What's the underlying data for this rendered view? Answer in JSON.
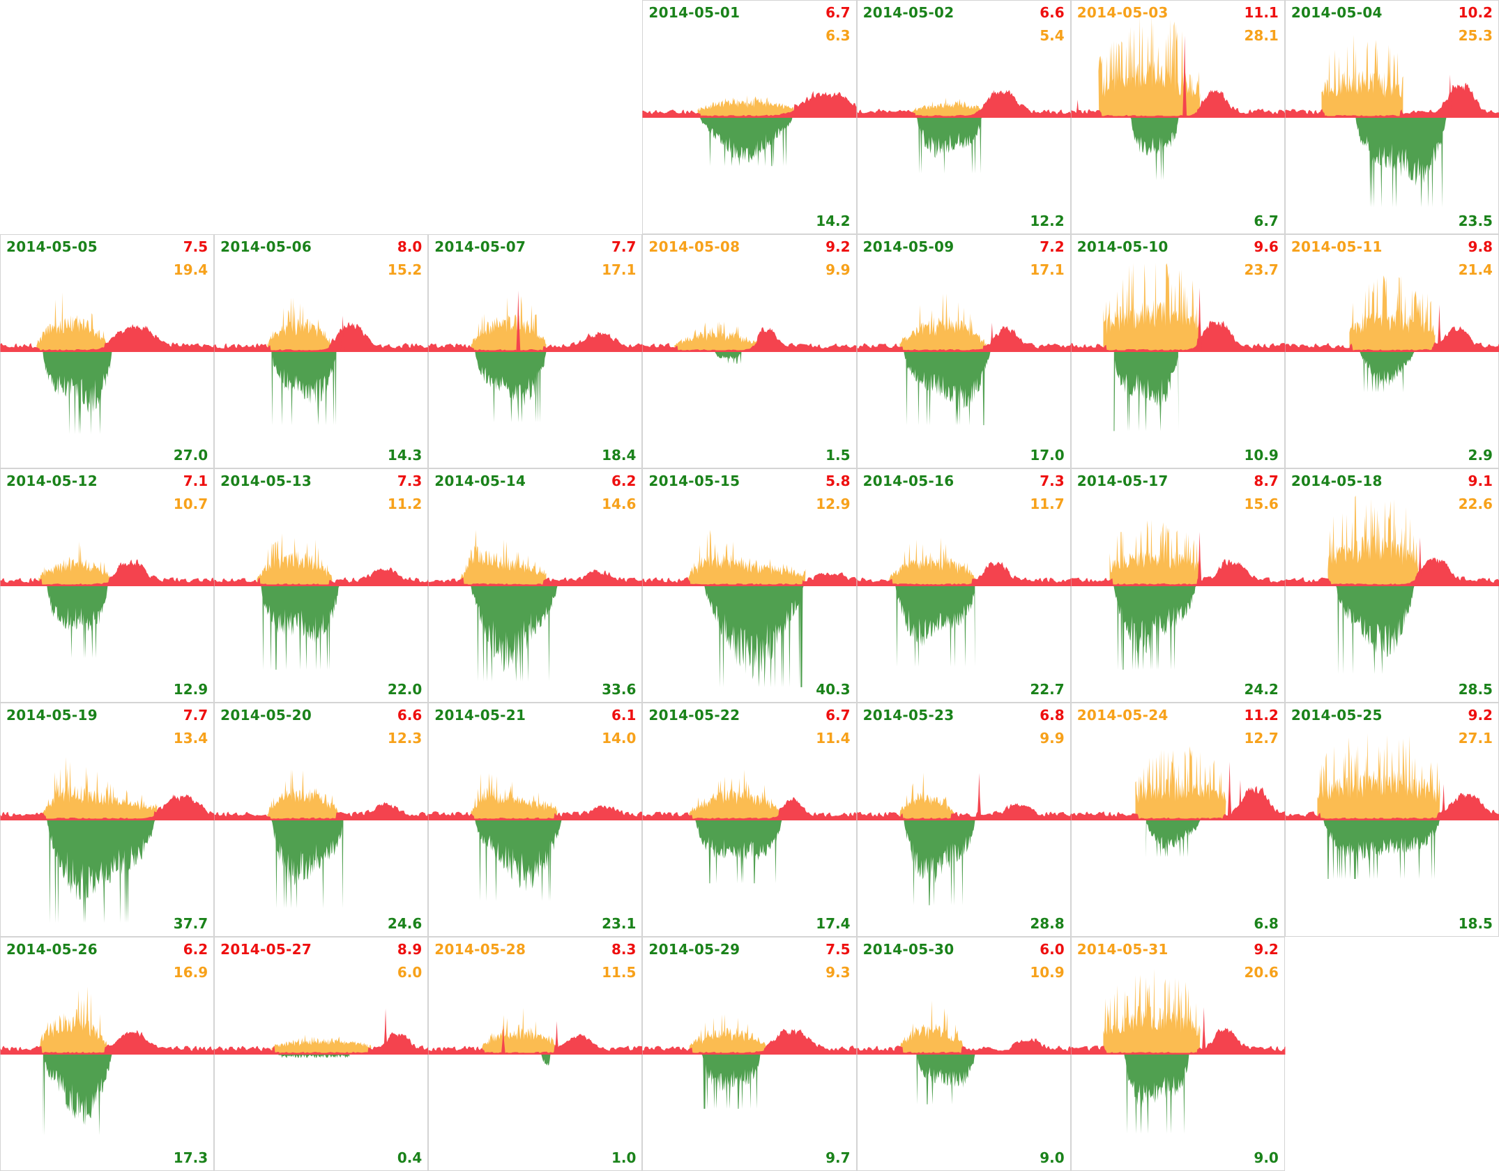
{
  "colors": {
    "text_green": "#1a821a",
    "text_red": "#ee0f0f",
    "text_orange": "#f7a11a",
    "fill_red": "#f4434e",
    "fill_orange": "#fbbc51",
    "fill_green": "#50a050",
    "border": "#d4d4d4",
    "background": "#ffffff"
  },
  "layout_note": "calendar small-multiples, Monday-start week, May 2014 (2014-05-01 falls on column 4 of 7)",
  "chart_data": {
    "type": "area",
    "subtype": "calendar-small-multiples",
    "title": "",
    "xlabel": "",
    "ylabel": "",
    "legend": "none",
    "description": "One intraday area chart per day. Above-baseline band is red outside the activity window and orange inside it (orange spikes up). Below-baseline spikes are green. Top-right red number and orange number, bottom-right green number are the day's summary values.",
    "days": [
      {
        "date": "2014-05-01",
        "label_color": "green",
        "red": "6.7",
        "orange": "6.3",
        "green": "14.2",
        "shape": {
          "aw": [
            0.26,
            0.72
          ],
          "op": 26,
          "os": "mid",
          "gw": [
            0.27,
            0.7
          ],
          "gd": 66,
          "rb": [
            0.86,
            0.13,
            26
          ],
          "rs": []
        }
      },
      {
        "date": "2014-05-02",
        "label_color": "green",
        "red": "6.6",
        "orange": "5.4",
        "green": "12.2",
        "shape": {
          "aw": [
            0.26,
            0.6
          ],
          "op": 18,
          "os": "mid",
          "gw": [
            0.28,
            0.58
          ],
          "gd": 76,
          "rb": [
            0.67,
            0.08,
            30
          ],
          "rs": []
        }
      },
      {
        "date": "2014-05-03",
        "label_color": "orange",
        "red": "11.1",
        "orange": "28.1",
        "green": "6.7",
        "shape": {
          "aw": [
            0.13,
            0.6
          ],
          "op": 118,
          "os": "dense",
          "gw": [
            0.28,
            0.5
          ],
          "gd": 85,
          "rb": [
            0.67,
            0.06,
            32
          ],
          "rs": [
            [
              0.53,
              118
            ],
            [
              0.03,
              26
            ]
          ]
        }
      },
      {
        "date": "2014-05-04",
        "label_color": "green",
        "red": "10.2",
        "orange": "25.3",
        "green": "23.5",
        "shape": {
          "aw": [
            0.17,
            0.55
          ],
          "op": 100,
          "os": "dense",
          "gw": [
            0.33,
            0.75
          ],
          "gd": 122,
          "rb": [
            0.82,
            0.07,
            40
          ],
          "rs": [
            [
              0.77,
              62
            ]
          ]
        }
      },
      {
        "date": "2014-05-05",
        "label_color": "green",
        "red": "7.5",
        "orange": "19.4",
        "green": "27.0",
        "shape": {
          "aw": [
            0.17,
            0.5
          ],
          "op": 70,
          "os": "mid",
          "gw": [
            0.2,
            0.52
          ],
          "gd": 112,
          "rb": [
            0.63,
            0.1,
            28
          ],
          "rs": []
        }
      },
      {
        "date": "2014-05-06",
        "label_color": "green",
        "red": "8.0",
        "orange": "15.2",
        "green": "14.3",
        "shape": {
          "aw": [
            0.25,
            0.55
          ],
          "op": 64,
          "os": "mid",
          "gw": [
            0.27,
            0.57
          ],
          "gd": 100,
          "rb": [
            0.64,
            0.07,
            32
          ],
          "rs": [
            [
              0.6,
              52
            ]
          ]
        }
      },
      {
        "date": "2014-05-07",
        "label_color": "green",
        "red": "7.7",
        "orange": "17.1",
        "green": "18.4",
        "shape": {
          "aw": [
            0.2,
            0.55
          ],
          "op": 74,
          "os": "mid",
          "gw": [
            0.22,
            0.55
          ],
          "gd": 96,
          "rb": [
            0.8,
            0.08,
            18
          ],
          "rs": [
            [
              0.42,
              88
            ]
          ]
        }
      },
      {
        "date": "2014-05-08",
        "label_color": "orange",
        "red": "9.2",
        "orange": "9.9",
        "green": "1.5",
        "shape": {
          "aw": [
            0.15,
            0.55
          ],
          "op": 32,
          "os": "low",
          "gw": [
            0.34,
            0.46
          ],
          "gd": 16,
          "rb": [
            0.58,
            0.05,
            24
          ],
          "rs": []
        }
      },
      {
        "date": "2014-05-09",
        "label_color": "green",
        "red": "7.2",
        "orange": "17.1",
        "green": "17.0",
        "shape": {
          "aw": [
            0.2,
            0.6
          ],
          "op": 68,
          "os": "mid",
          "gw": [
            0.22,
            0.62
          ],
          "gd": 100,
          "rb": [
            0.7,
            0.06,
            26
          ],
          "rs": [
            [
              0.63,
              42
            ]
          ]
        }
      },
      {
        "date": "2014-05-10",
        "label_color": "green",
        "red": "9.6",
        "orange": "23.7",
        "green": "10.9",
        "shape": {
          "aw": [
            0.15,
            0.6
          ],
          "op": 108,
          "os": "dense",
          "gw": [
            0.2,
            0.5
          ],
          "gd": 108,
          "rb": [
            0.68,
            0.07,
            34
          ],
          "rs": [
            [
              0.6,
              92
            ]
          ]
        }
      },
      {
        "date": "2014-05-11",
        "label_color": "orange",
        "red": "9.8",
        "orange": "21.4",
        "green": "2.9",
        "shape": {
          "aw": [
            0.3,
            0.7
          ],
          "op": 88,
          "os": "dense",
          "gw": [
            0.35,
            0.6
          ],
          "gd": 55,
          "rb": [
            0.8,
            0.06,
            26
          ],
          "rs": [
            [
              0.72,
              68
            ]
          ]
        }
      },
      {
        "date": "2014-05-12",
        "label_color": "green",
        "red": "7.1",
        "orange": "10.7",
        "green": "12.9",
        "shape": {
          "aw": [
            0.18,
            0.52
          ],
          "op": 52,
          "os": "mid",
          "gw": [
            0.22,
            0.5
          ],
          "gd": 98,
          "rb": [
            0.61,
            0.07,
            28
          ],
          "rs": []
        }
      },
      {
        "date": "2014-05-13",
        "label_color": "green",
        "red": "7.3",
        "orange": "11.2",
        "green": "22.0",
        "shape": {
          "aw": [
            0.2,
            0.55
          ],
          "op": 68,
          "os": "mid",
          "gw": [
            0.22,
            0.58
          ],
          "gd": 114,
          "rb": [
            0.8,
            0.07,
            16
          ],
          "rs": []
        }
      },
      {
        "date": "2014-05-14",
        "label_color": "green",
        "red": "6.2",
        "orange": "14.6",
        "green": "33.6",
        "shape": {
          "aw": [
            0.15,
            0.55
          ],
          "op": 84,
          "os": "ramp",
          "gw": [
            0.2,
            0.6
          ],
          "gd": 130,
          "rb": [
            0.8,
            0.06,
            12
          ],
          "rs": []
        }
      },
      {
        "date": "2014-05-15",
        "label_color": "green",
        "red": "5.8",
        "orange": "12.9",
        "green": "40.3",
        "shape": {
          "aw": [
            0.21,
            0.76
          ],
          "op": 70,
          "os": "ramp",
          "gw": [
            0.29,
            0.75
          ],
          "gd": 138,
          "rb": [
            0.88,
            0.07,
            12
          ],
          "rs": []
        }
      },
      {
        "date": "2014-05-16",
        "label_color": "green",
        "red": "7.3",
        "orange": "11.7",
        "green": "22.7",
        "shape": {
          "aw": [
            0.15,
            0.55
          ],
          "op": 60,
          "os": "mid",
          "gw": [
            0.18,
            0.55
          ],
          "gd": 110,
          "rb": [
            0.65,
            0.06,
            26
          ],
          "rs": []
        }
      },
      {
        "date": "2014-05-17",
        "label_color": "green",
        "red": "8.7",
        "orange": "15.6",
        "green": "24.2",
        "shape": {
          "aw": [
            0.18,
            0.6
          ],
          "op": 74,
          "os": "dense",
          "gw": [
            0.2,
            0.58
          ],
          "gd": 114,
          "rb": [
            0.75,
            0.07,
            28
          ],
          "rs": [
            [
              0.6,
              78
            ]
          ]
        }
      },
      {
        "date": "2014-05-18",
        "label_color": "green",
        "red": "9.1",
        "orange": "22.6",
        "green": "28.5",
        "shape": {
          "aw": [
            0.2,
            0.62
          ],
          "op": 108,
          "os": "dense",
          "gw": [
            0.24,
            0.6
          ],
          "gd": 120,
          "rb": [
            0.7,
            0.07,
            33
          ],
          "rs": [
            [
              0.63,
              70
            ]
          ]
        }
      },
      {
        "date": "2014-05-19",
        "label_color": "green",
        "red": "7.7",
        "orange": "13.4",
        "green": "37.7",
        "shape": {
          "aw": [
            0.2,
            0.73
          ],
          "op": 80,
          "os": "ramp",
          "gw": [
            0.22,
            0.72
          ],
          "gd": 140,
          "rb": [
            0.85,
            0.09,
            26
          ],
          "rs": []
        }
      },
      {
        "date": "2014-05-20",
        "label_color": "green",
        "red": "6.6",
        "orange": "12.3",
        "green": "24.6",
        "shape": {
          "aw": [
            0.25,
            0.58
          ],
          "op": 64,
          "os": "mid",
          "gw": [
            0.27,
            0.6
          ],
          "gd": 120,
          "rb": [
            0.8,
            0.06,
            14
          ],
          "rs": []
        }
      },
      {
        "date": "2014-05-21",
        "label_color": "green",
        "red": "6.1",
        "orange": "14.0",
        "green": "23.1",
        "shape": {
          "aw": [
            0.2,
            0.6
          ],
          "op": 70,
          "os": "ramp",
          "gw": [
            0.22,
            0.62
          ],
          "gd": 110,
          "rb": [
            0.82,
            0.06,
            12
          ],
          "rs": []
        }
      },
      {
        "date": "2014-05-22",
        "label_color": "green",
        "red": "6.7",
        "orange": "11.4",
        "green": "17.4",
        "shape": {
          "aw": [
            0.22,
            0.65
          ],
          "op": 58,
          "os": "mid",
          "gw": [
            0.25,
            0.65
          ],
          "gd": 86,
          "rb": [
            0.7,
            0.05,
            22
          ],
          "rs": []
        }
      },
      {
        "date": "2014-05-23",
        "label_color": "green",
        "red": "6.8",
        "orange": "9.9",
        "green": "28.8",
        "shape": {
          "aw": [
            0.2,
            0.45
          ],
          "op": 54,
          "os": "mid",
          "gw": [
            0.22,
            0.55
          ],
          "gd": 116,
          "rb": [
            0.75,
            0.06,
            16
          ],
          "rs": [
            [
              0.57,
              68
            ]
          ]
        }
      },
      {
        "date": "2014-05-24",
        "label_color": "orange",
        "red": "11.2",
        "orange": "12.7",
        "green": "6.8",
        "shape": {
          "aw": [
            0.3,
            0.72
          ],
          "op": 84,
          "os": "dense",
          "gw": [
            0.35,
            0.6
          ],
          "gd": 50,
          "rb": [
            0.86,
            0.07,
            38
          ],
          "rs": [
            [
              0.74,
              84
            ],
            [
              0.79,
              58
            ]
          ]
        }
      },
      {
        "date": "2014-05-25",
        "label_color": "green",
        "red": "9.2",
        "orange": "27.1",
        "green": "18.5",
        "shape": {
          "aw": [
            0.15,
            0.72
          ],
          "op": 104,
          "os": "dense",
          "gw": [
            0.18,
            0.72
          ],
          "gd": 80,
          "rb": [
            0.85,
            0.08,
            28
          ],
          "rs": [
            [
              0.74,
              52
            ]
          ]
        }
      },
      {
        "date": "2014-05-26",
        "label_color": "green",
        "red": "6.2",
        "orange": "16.9",
        "green": "17.3",
        "shape": {
          "aw": [
            0.18,
            0.5
          ],
          "op": 92,
          "os": "mid",
          "gw": [
            0.2,
            0.52
          ],
          "gd": 110,
          "rb": [
            0.62,
            0.07,
            24
          ],
          "rs": []
        }
      },
      {
        "date": "2014-05-27",
        "label_color": "red",
        "red": "8.9",
        "orange": "6.0",
        "green": "0.4",
        "shape": {
          "aw": [
            0.27,
            0.73
          ],
          "op": 20,
          "os": "low",
          "gw": [
            0.3,
            0.63
          ],
          "gd": 5,
          "rb": [
            0.86,
            0.06,
            22
          ],
          "rs": [
            [
              0.8,
              66
            ]
          ]
        }
      },
      {
        "date": "2014-05-28",
        "label_color": "orange",
        "red": "8.3",
        "orange": "11.5",
        "green": "1.0",
        "shape": {
          "aw": [
            0.25,
            0.6
          ],
          "op": 52,
          "os": "mid",
          "gw": [
            0.53,
            0.57
          ],
          "gd": 24,
          "rb": [
            0.7,
            0.06,
            18
          ],
          "rs": [
            [
              0.35,
              42
            ],
            [
              0.6,
              48
            ]
          ]
        }
      },
      {
        "date": "2014-05-29",
        "label_color": "green",
        "red": "7.5",
        "orange": "9.3",
        "green": "9.7",
        "shape": {
          "aw": [
            0.22,
            0.58
          ],
          "op": 48,
          "os": "mid",
          "gw": [
            0.28,
            0.55
          ],
          "gd": 74,
          "rb": [
            0.7,
            0.09,
            26
          ],
          "rs": []
        }
      },
      {
        "date": "2014-05-30",
        "label_color": "green",
        "red": "6.0",
        "orange": "10.9",
        "green": "9.0",
        "shape": {
          "aw": [
            0.2,
            0.5
          ],
          "op": 58,
          "os": "mid",
          "gw": [
            0.28,
            0.55
          ],
          "gd": 68,
          "rb": [
            0.8,
            0.06,
            14
          ],
          "rs": []
        }
      },
      {
        "date": "2014-05-31",
        "label_color": "orange",
        "red": "9.2",
        "orange": "20.6",
        "green": "9.0",
        "shape": {
          "aw": [
            0.15,
            0.6
          ],
          "op": 98,
          "os": "dense",
          "gw": [
            0.25,
            0.55
          ],
          "gd": 108,
          "rb": [
            0.72,
            0.06,
            28
          ],
          "rs": [
            [
              0.62,
              68
            ]
          ]
        }
      }
    ]
  }
}
